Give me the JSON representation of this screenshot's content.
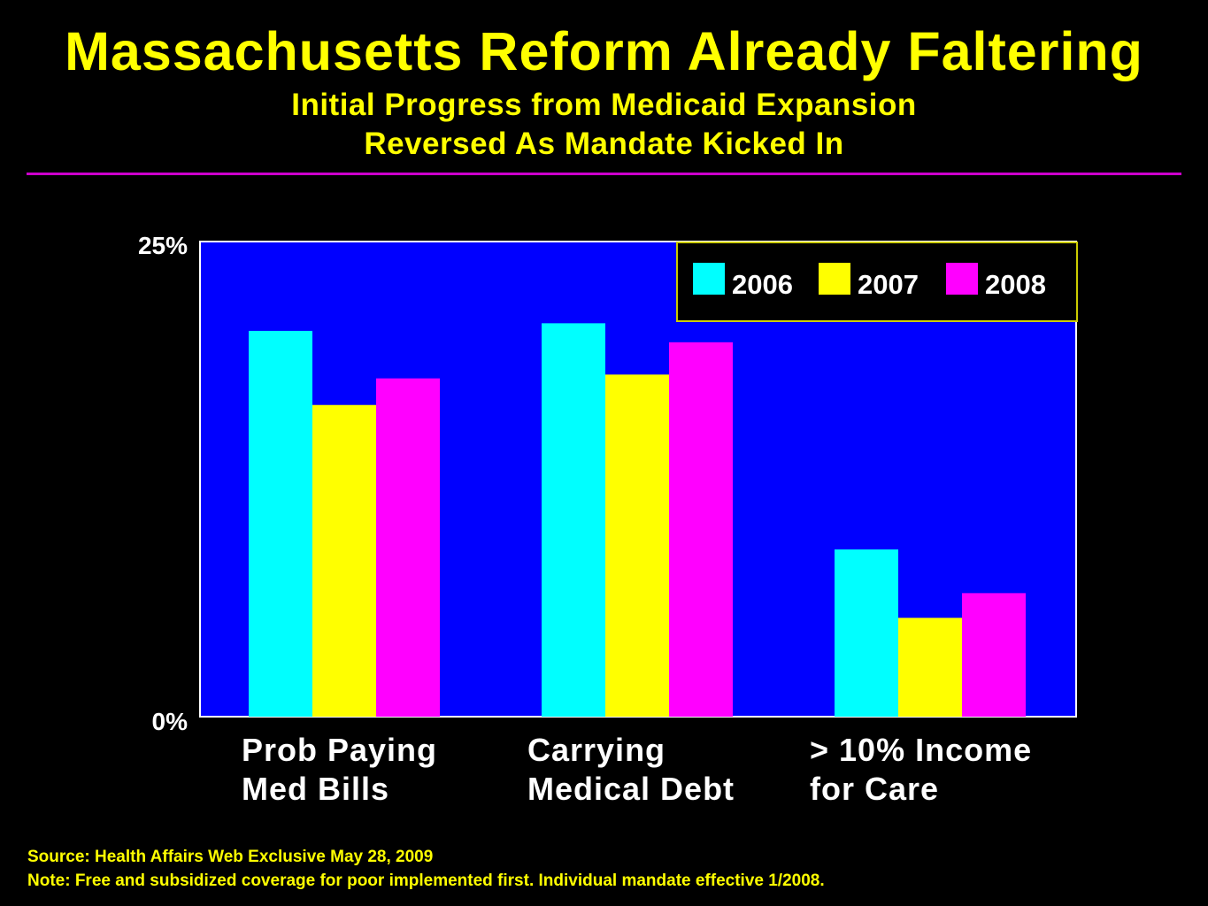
{
  "title": "Massachusetts Reform Already Faltering",
  "subtitle_line1": "Initial Progress from Medicaid Expansion",
  "subtitle_line2": "Reversed As Mandate Kicked In",
  "source": "Source: Health Affairs Web Exclusive May 28, 2009",
  "note": "Note: Free and subsidized coverage for poor implemented first. Individual mandate effective 1/2008.",
  "colors": {
    "background": "#000000",
    "plot_background": "#0000FF",
    "title": "#FFFF00",
    "rule": "#CC00CC",
    "series_2006": "#00FFFF",
    "series_2007": "#FFFF00",
    "series_2008": "#FF00FF"
  },
  "chart_data": {
    "type": "bar",
    "categories": [
      [
        "Prob Paying",
        "Med Bills"
      ],
      [
        "Carrying",
        "Medical Debt"
      ],
      [
        "> 10% Income",
        "for Care"
      ]
    ],
    "series": [
      {
        "name": "2006",
        "values": [
          20.3,
          20.7,
          8.8
        ],
        "color": "#00FFFF"
      },
      {
        "name": "2007",
        "values": [
          16.4,
          18.0,
          5.2
        ],
        "color": "#FFFF00"
      },
      {
        "name": "2008",
        "values": [
          17.8,
          19.7,
          6.5
        ],
        "color": "#FF00FF"
      }
    ],
    "ylim": [
      0,
      25
    ],
    "ytick_labels": [
      "0%",
      "25%"
    ],
    "grid": false,
    "legend_position": "top-right"
  }
}
